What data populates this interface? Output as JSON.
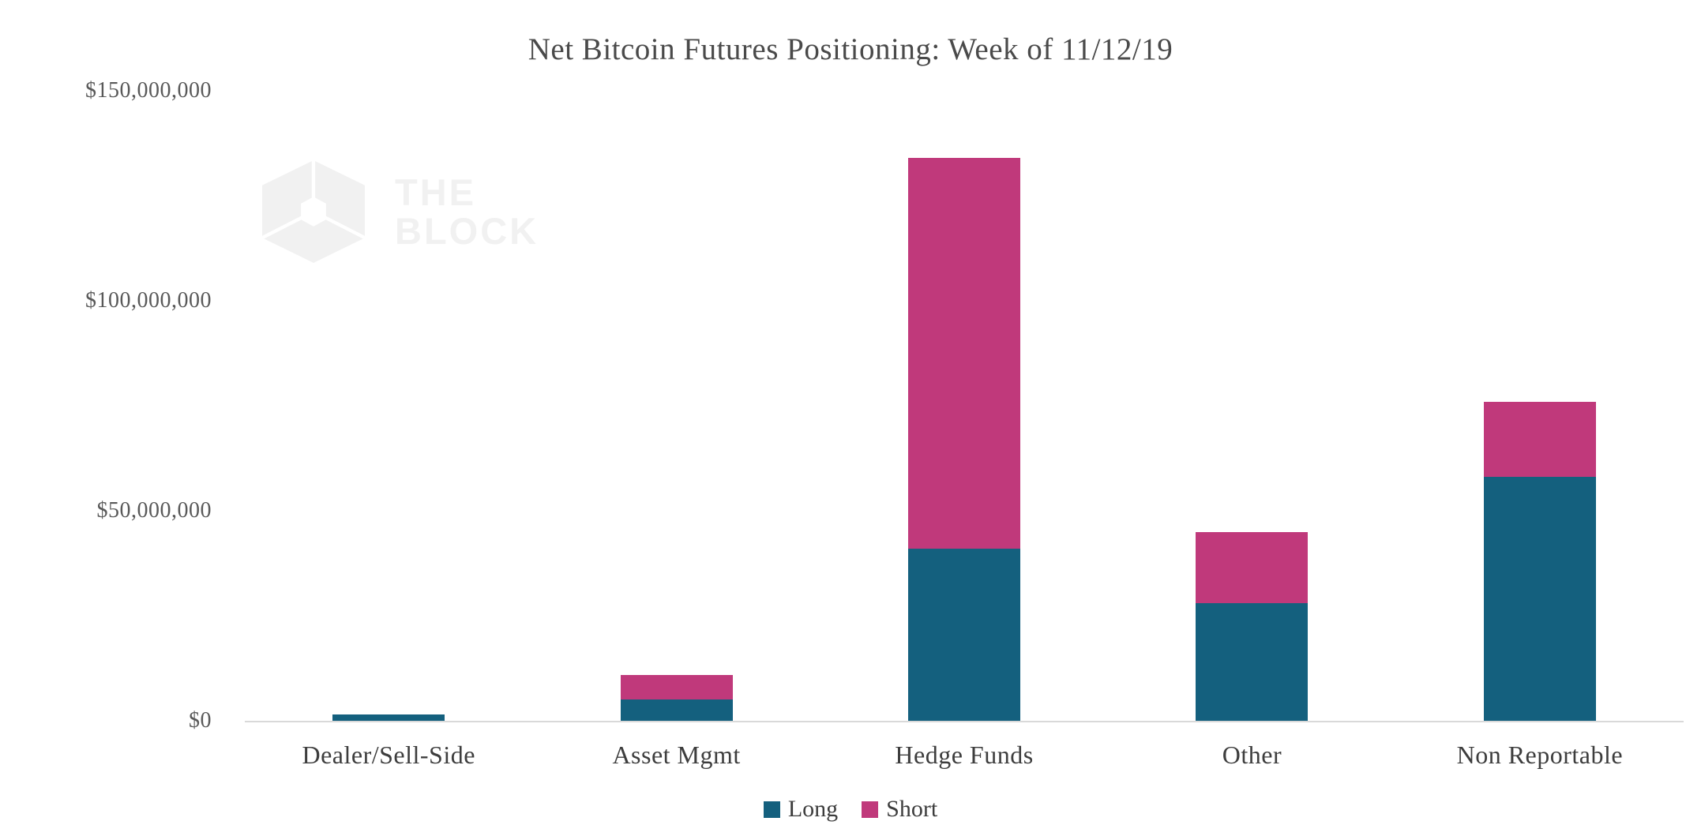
{
  "chart_data": {
    "type": "bar",
    "subtype": "stacked",
    "title": "Net Bitcoin Futures Positioning: Week of 11/12/19",
    "categories": [
      "Dealer/Sell-Side",
      "Asset Mgmt",
      "Hedge Funds",
      "Other",
      "Non Reportable"
    ],
    "series": [
      {
        "name": "Long",
        "color": "#14607e",
        "values": [
          1500000,
          5000000,
          41000000,
          28000000,
          58000000
        ]
      },
      {
        "name": "Short",
        "color": "#c0397b",
        "values": [
          0,
          6000000,
          93000000,
          17000000,
          18000000
        ]
      }
    ],
    "xlabel": "",
    "ylabel": "",
    "ylim": [
      0,
      150000000
    ],
    "ytick_values": [
      150000000,
      100000000,
      50000000,
      0
    ],
    "ytick_labels": [
      "$150,000,000",
      "$100,000,000",
      "$50,000,000",
      "$0"
    ],
    "grid": false,
    "legend_position": "bottom"
  },
  "watermark": {
    "line1": "THE",
    "line2": "BLOCK"
  }
}
